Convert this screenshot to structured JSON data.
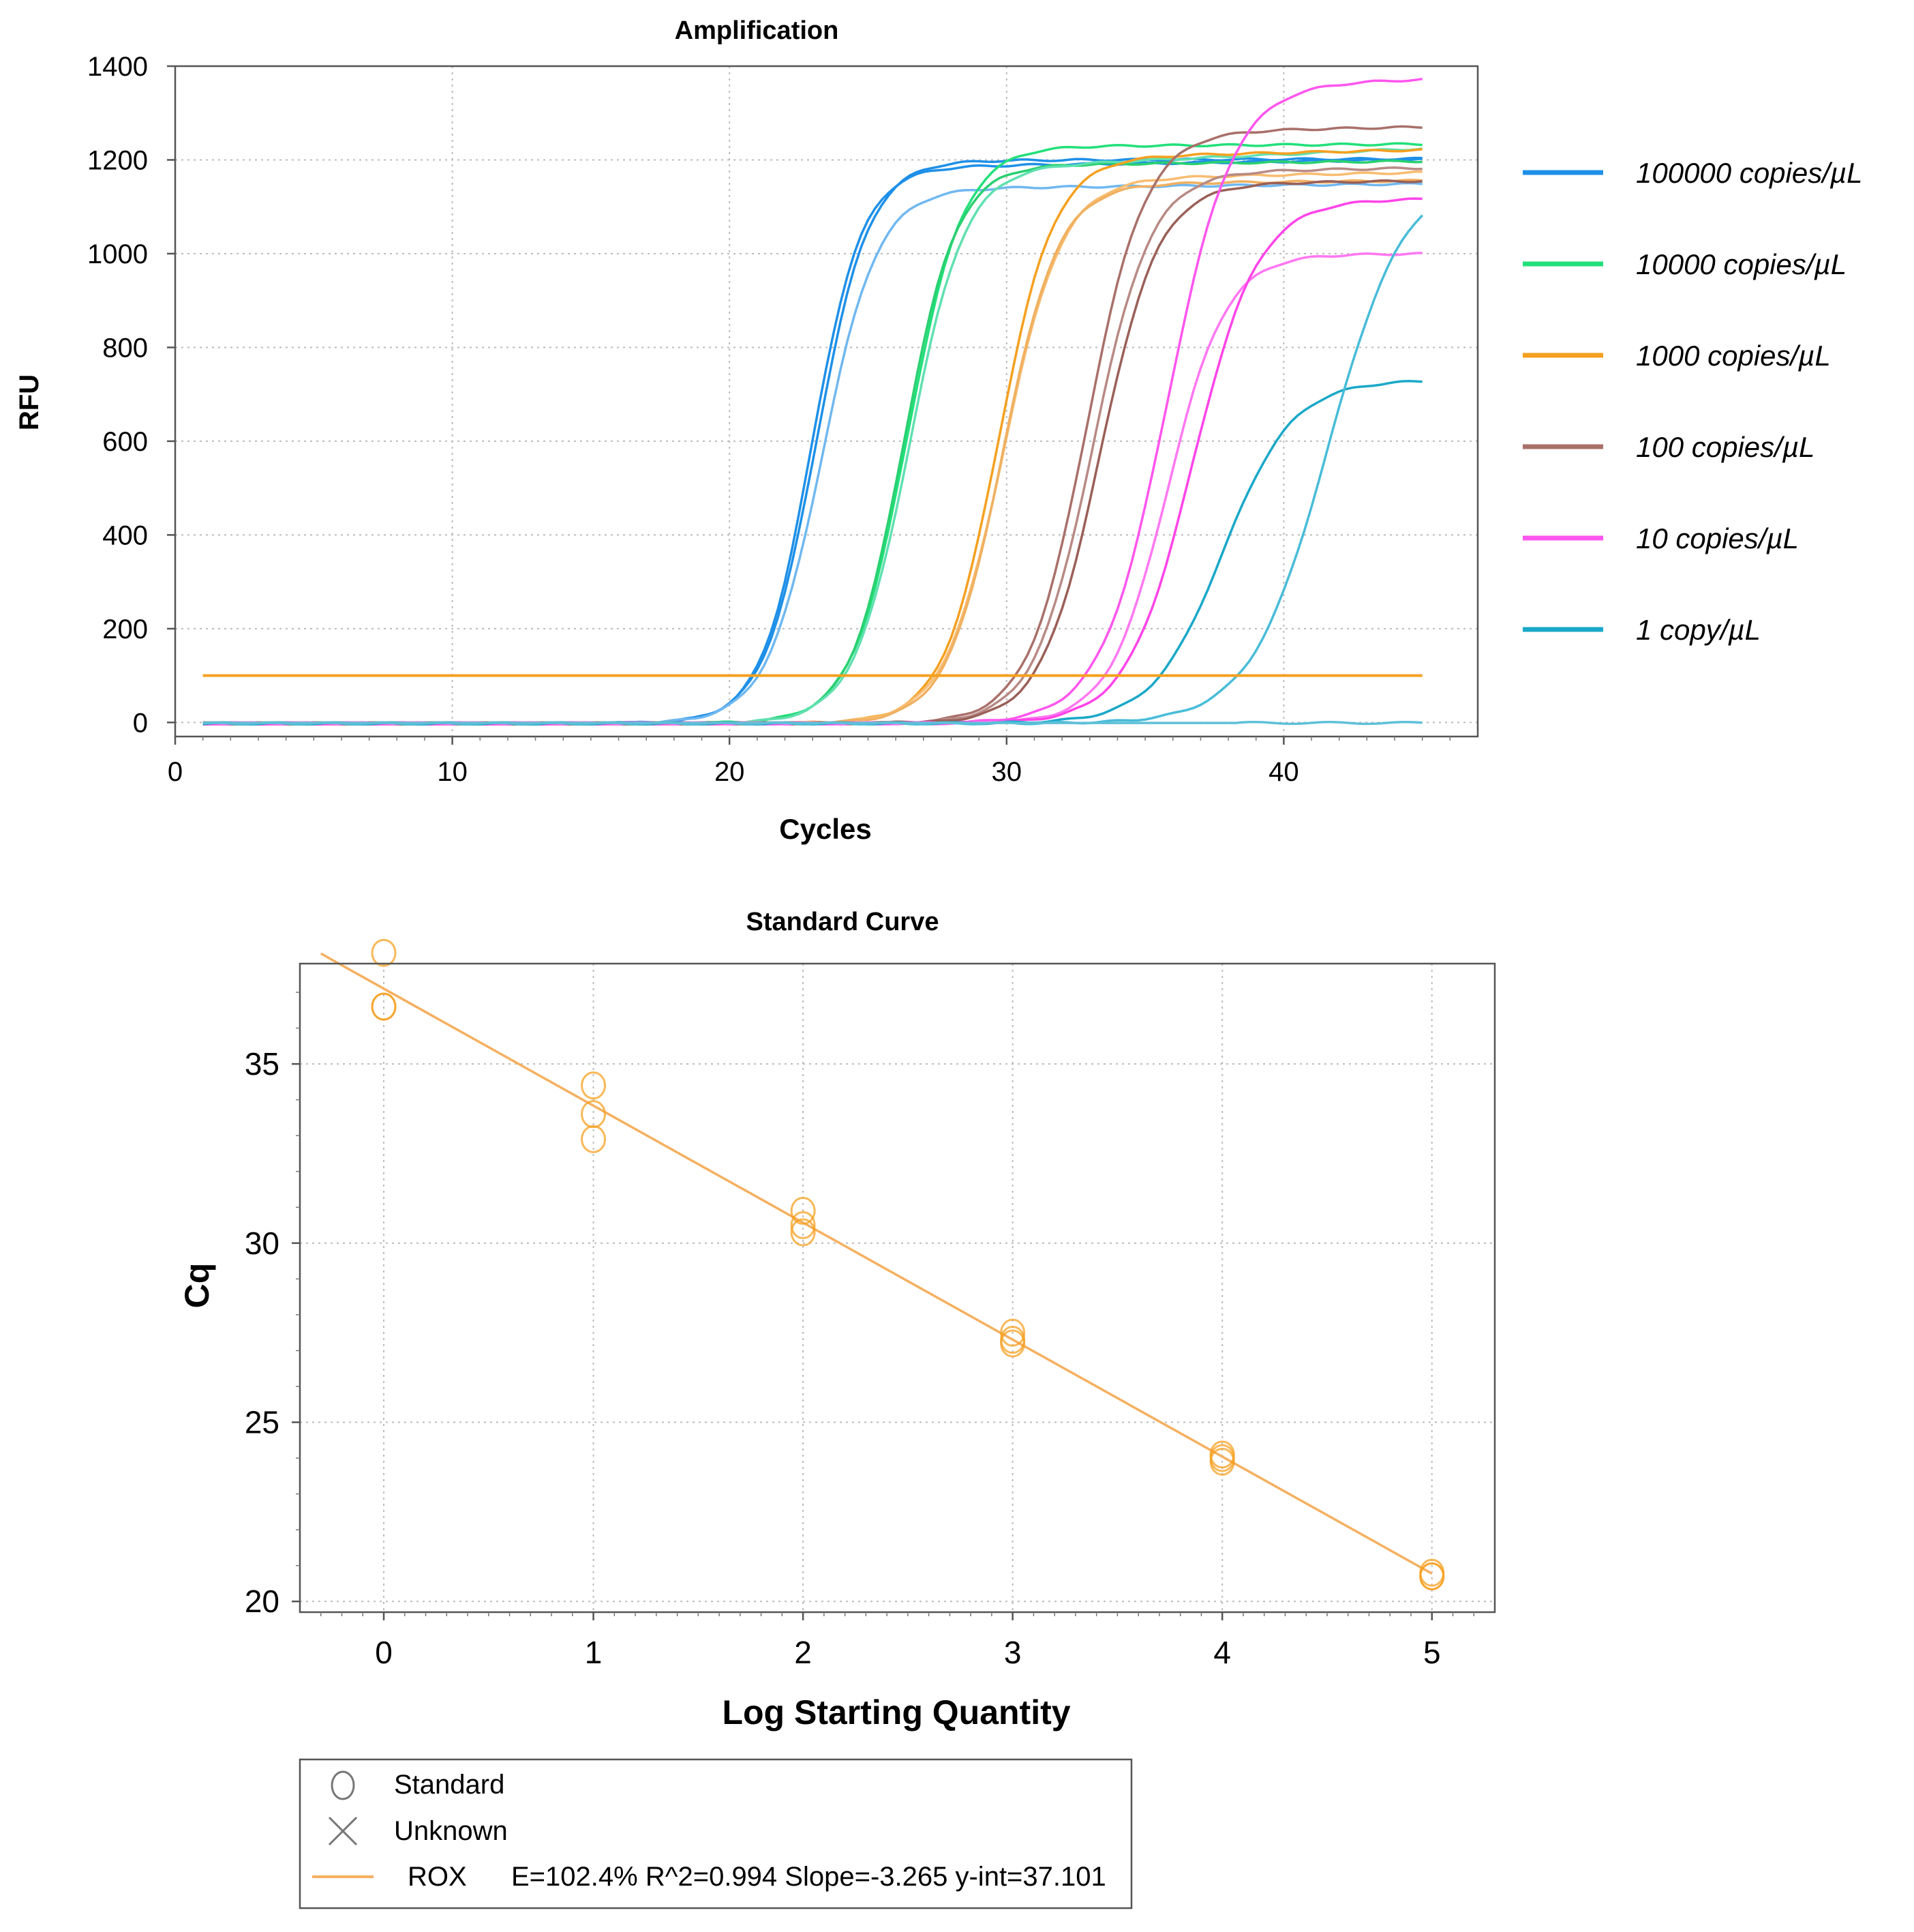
{
  "chart_data": [
    {
      "type": "line",
      "title": "Amplification",
      "xlabel": "Cycles",
      "ylabel": "RFU",
      "xlim": [
        0,
        47
      ],
      "ylim": [
        -30,
        1400
      ],
      "xticks": [
        0,
        10,
        20,
        30,
        40
      ],
      "yticks": [
        0,
        200,
        400,
        600,
        800,
        1000,
        1200,
        1400
      ],
      "grid": true,
      "threshold": 100,
      "threshold_color": "#f5a020",
      "x_range": [
        1,
        45
      ],
      "legend": [
        {
          "label": "100000 copies/µL",
          "color": "#1e90e8"
        },
        {
          "label": "10000 copies/µL",
          "color": "#22e07a"
        },
        {
          "label": "1000 copies/µL",
          "color": "#f5a020"
        },
        {
          "label": "100 copies/µL",
          "color": "#a9706a"
        },
        {
          "label": "10 copies/µL",
          "color": "#ff55ee"
        },
        {
          "label": "1 copy/µL",
          "color": "#1aa8c8"
        }
      ],
      "series": [
        {
          "group": "100000 copies/µL",
          "color": "#1e90e8",
          "cq": 20.8,
          "plateau": 1185,
          "k": 1.1,
          "drift": 0.8
        },
        {
          "group": "100000 copies/µL",
          "color": "#1e90e8",
          "cq": 20.85,
          "plateau": 1200,
          "k": 1.05,
          "drift": 0.2
        },
        {
          "group": "100000 copies/µL",
          "color": "#70b8f0",
          "cq": 21.0,
          "plateau": 1140,
          "k": 1.0,
          "drift": 0.5
        },
        {
          "group": "10000 copies/µL",
          "color": "#22e07a",
          "cq": 24.0,
          "plateau": 1230,
          "k": 1.0,
          "drift": 0.3
        },
        {
          "group": "10000 copies/µL",
          "color": "#2ad070",
          "cq": 24.0,
          "plateau": 1190,
          "k": 1.05,
          "drift": 0.5
        },
        {
          "group": "10000 copies/µL",
          "color": "#60e0b0",
          "cq": 24.1,
          "plateau": 1180,
          "k": 1.0,
          "drift": 2.5
        },
        {
          "group": "1000 copies/µL",
          "color": "#f5a020",
          "cq": 27.3,
          "plateau": 1205,
          "k": 1.0,
          "drift": 1.2
        },
        {
          "group": "1000 copies/µL",
          "color": "#f8bc70",
          "cq": 27.4,
          "plateau": 1160,
          "k": 0.95,
          "drift": 1.0
        },
        {
          "group": "1000 copies/µL",
          "color": "#f0b060",
          "cq": 27.5,
          "plateau": 1150,
          "k": 1.0,
          "drift": 0.5
        },
        {
          "group": "100 copies/µL",
          "color": "#a9706a",
          "cq": 30.3,
          "plateau": 1260,
          "k": 0.95,
          "drift": 1.0
        },
        {
          "group": "100 copies/µL",
          "color": "#b88a85",
          "cq": 30.6,
          "plateau": 1175,
          "k": 0.95,
          "drift": 0.8
        },
        {
          "group": "100 copies/µL",
          "color": "#9a6058",
          "cq": 30.9,
          "plateau": 1150,
          "k": 0.95,
          "drift": 0.6
        },
        {
          "group": "10 copies/µL",
          "color": "#ff55ee",
          "cq": 32.8,
          "plateau": 1360,
          "k": 0.85,
          "drift": 1.5
        },
        {
          "group": "10 copies/µL",
          "color": "#ff77f2",
          "cq": 33.5,
          "plateau": 1000,
          "k": 0.95,
          "drift": 0.2
        },
        {
          "group": "10 copies/µL",
          "color": "#ff44e8",
          "cq": 34.0,
          "plateau": 1115,
          "k": 0.85,
          "drift": 0.5
        },
        {
          "group": "1 copy/µL",
          "color": "#1aa8c8",
          "cq": 35.5,
          "plateau": 730,
          "k": 0.8,
          "drift": 0.3
        },
        {
          "group": "1 copy/µL",
          "color": "#48bcd8",
          "cq": 38.3,
          "plateau": 1180,
          "k": 0.72,
          "drift": 0.0
        },
        {
          "group": "1 copy/µL",
          "color": "#5fc0d8",
          "cq": null,
          "plateau": 0,
          "k": 0,
          "drift": 0
        }
      ]
    },
    {
      "type": "scatter",
      "title": "Standard Curve",
      "xlabel": "Log Starting Quantity",
      "ylabel": "Cq",
      "xlim": [
        -0.4,
        5.3
      ],
      "ylim": [
        19.7,
        37.8
      ],
      "xticks": [
        0,
        1,
        2,
        3,
        4,
        5
      ],
      "yticks": [
        20,
        25,
        30,
        35
      ],
      "grid": true,
      "color": "#f5a020",
      "points": [
        {
          "x": 0,
          "y": 36.6
        },
        {
          "x": 0,
          "y": 36.6
        },
        {
          "x": 0,
          "y": 38.1
        },
        {
          "x": 1,
          "y": 34.4
        },
        {
          "x": 1,
          "y": 33.6
        },
        {
          "x": 1,
          "y": 32.9
        },
        {
          "x": 2,
          "y": 30.9
        },
        {
          "x": 2,
          "y": 30.5
        },
        {
          "x": 2,
          "y": 30.3
        },
        {
          "x": 3,
          "y": 27.5
        },
        {
          "x": 3,
          "y": 27.3
        },
        {
          "x": 3,
          "y": 27.2
        },
        {
          "x": 4,
          "y": 24.1
        },
        {
          "x": 4,
          "y": 24.0
        },
        {
          "x": 4,
          "y": 23.9
        },
        {
          "x": 5,
          "y": 20.8
        },
        {
          "x": 5,
          "y": 20.7
        },
        {
          "x": 5,
          "y": 20.7
        }
      ],
      "fit": {
        "slope": -3.265,
        "intercept": 37.101,
        "x_range": [
          -0.3,
          5.0
        ]
      },
      "legend": {
        "standard": "Standard",
        "unknown": "Unknown",
        "series_name": "ROX",
        "stats": "E=102.4% R^2=0.994 Slope=-3.265 y-int=37.101"
      }
    }
  ]
}
